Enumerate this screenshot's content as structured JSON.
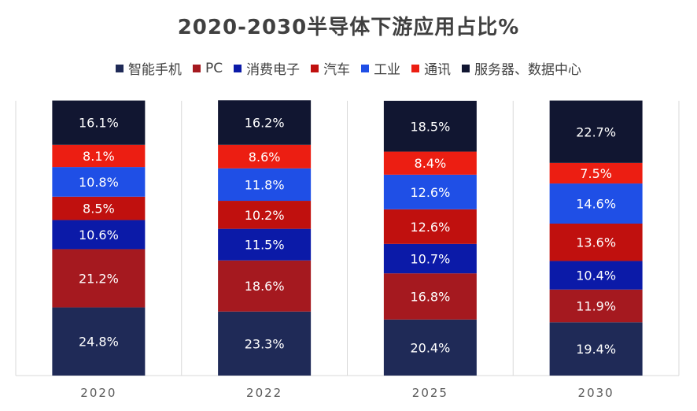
{
  "chart_data": {
    "type": "bar",
    "stacked": true,
    "title": "2020-2030半导体下游应用占比%",
    "categories": [
      "2020",
      "2022",
      "2025",
      "2030"
    ],
    "series": [
      {
        "name": "智能手机",
        "color": "#1f2a57",
        "values": [
          24.8,
          23.3,
          20.4,
          19.4
        ]
      },
      {
        "name": "PC",
        "color": "#a5191f",
        "values": [
          21.2,
          18.6,
          16.8,
          11.9
        ]
      },
      {
        "name": "消费电子",
        "color": "#0b1aa8",
        "values": [
          10.6,
          11.5,
          10.7,
          10.4
        ]
      },
      {
        "name": "汽车",
        "color": "#c0100e",
        "values": [
          8.5,
          10.2,
          12.6,
          13.6
        ]
      },
      {
        "name": "工业",
        "color": "#1f4fe6",
        "values": [
          10.8,
          11.8,
          12.6,
          14.6
        ]
      },
      {
        "name": "通讯",
        "color": "#ec1e12",
        "values": [
          8.1,
          8.6,
          8.4,
          7.5
        ]
      },
      {
        "name": "服务器、数据中心",
        "color": "#111631",
        "values": [
          16.1,
          16.2,
          18.5,
          22.7
        ]
      }
    ],
    "value_labels": [
      [
        "24.8%",
        "23.3%",
        "20.4%",
        "19.4%"
      ],
      [
        "21.2%",
        "18.6%",
        "16.8%",
        "11.9%"
      ],
      [
        "10.6%",
        "11.5%",
        "10.7%",
        "10.4%"
      ],
      [
        "8.5%",
        "10.2%",
        "12.6%",
        "13.6%"
      ],
      [
        "10.8%",
        "11.8%",
        "12.6%",
        "14.6%"
      ],
      [
        "8.1%",
        "8.6%",
        "8.4%",
        "7.5%"
      ],
      [
        "16.1%",
        "16.2%",
        "18.5%",
        "22.7%"
      ]
    ],
    "ylim": [
      0,
      100
    ],
    "grid": "vertical-separators",
    "legend_position": "top"
  }
}
